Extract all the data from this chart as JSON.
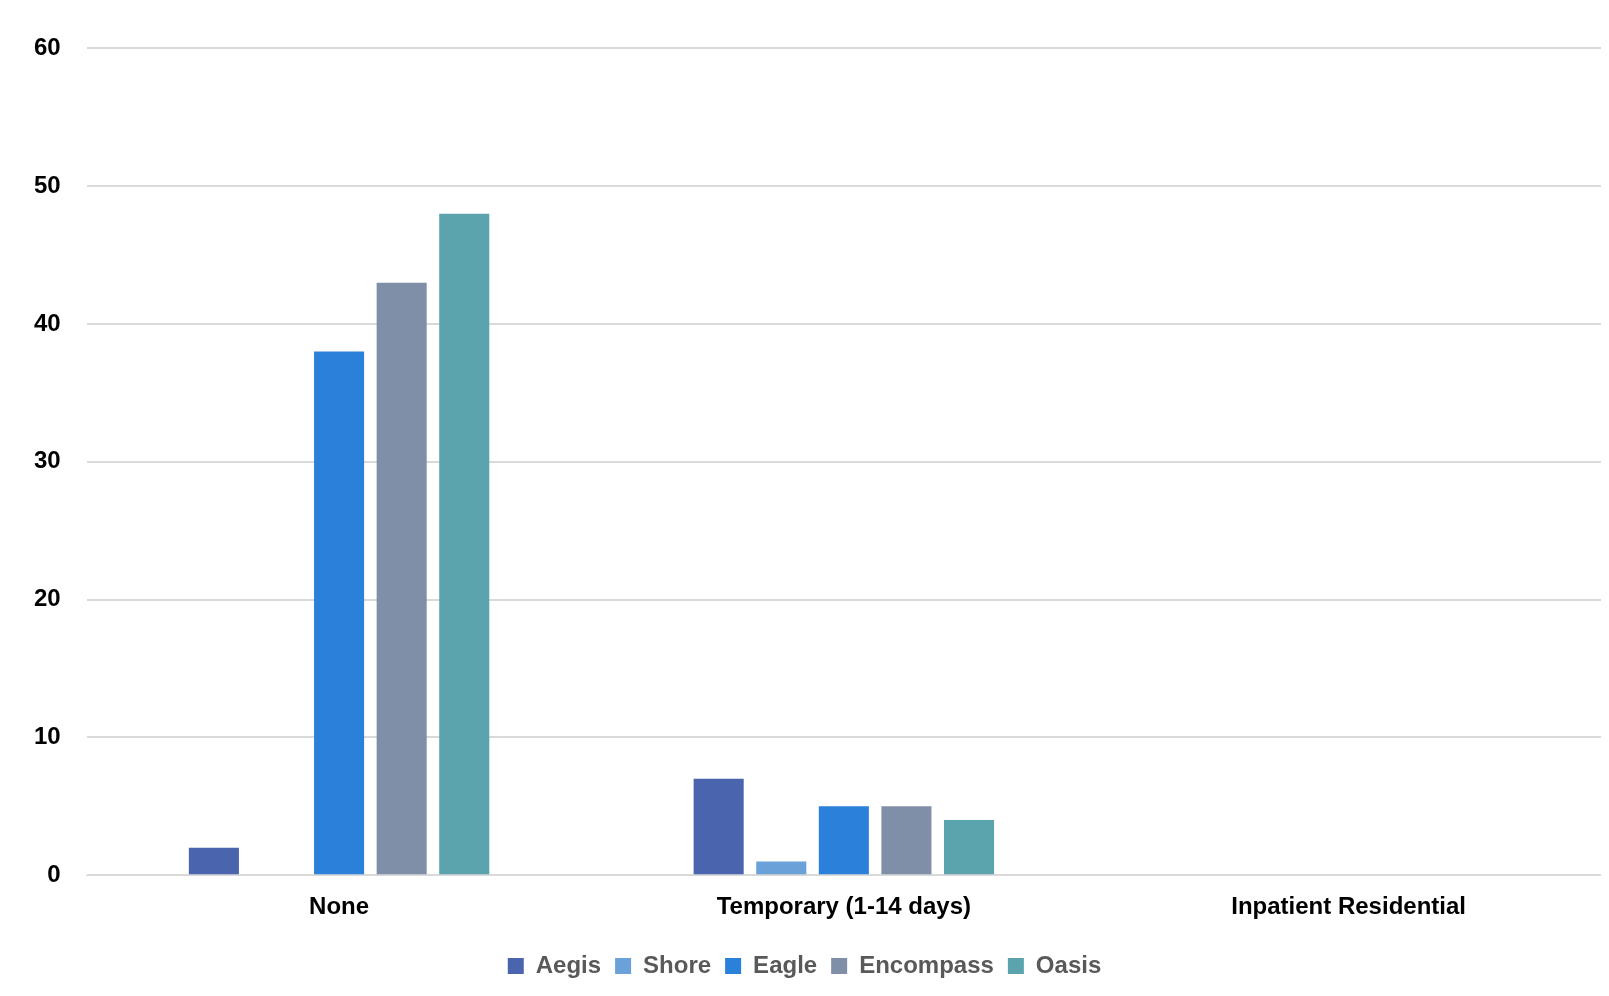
{
  "chart_data": {
    "type": "bar",
    "categories": [
      "None",
      "Temporary (1-14 days)",
      "Inpatient Residential"
    ],
    "series": [
      {
        "name": "Aegis",
        "color": "#4a65ae",
        "values": [
          2,
          7,
          0
        ]
      },
      {
        "name": "Shore",
        "color": "#6aa1d8",
        "values": [
          0,
          1,
          0
        ]
      },
      {
        "name": "Eagle",
        "color": "#2b80d9",
        "values": [
          38,
          5,
          0
        ]
      },
      {
        "name": "Encompass",
        "color": "#808fa8",
        "values": [
          43,
          5,
          0
        ]
      },
      {
        "name": "Oasis",
        "color": "#5ba3ad",
        "values": [
          48,
          4,
          0
        ]
      }
    ],
    "ylim": [
      0,
      60
    ],
    "yticks": [
      0,
      10,
      20,
      30,
      40,
      50,
      60
    ],
    "grid": "y",
    "legend": "bottom"
  }
}
